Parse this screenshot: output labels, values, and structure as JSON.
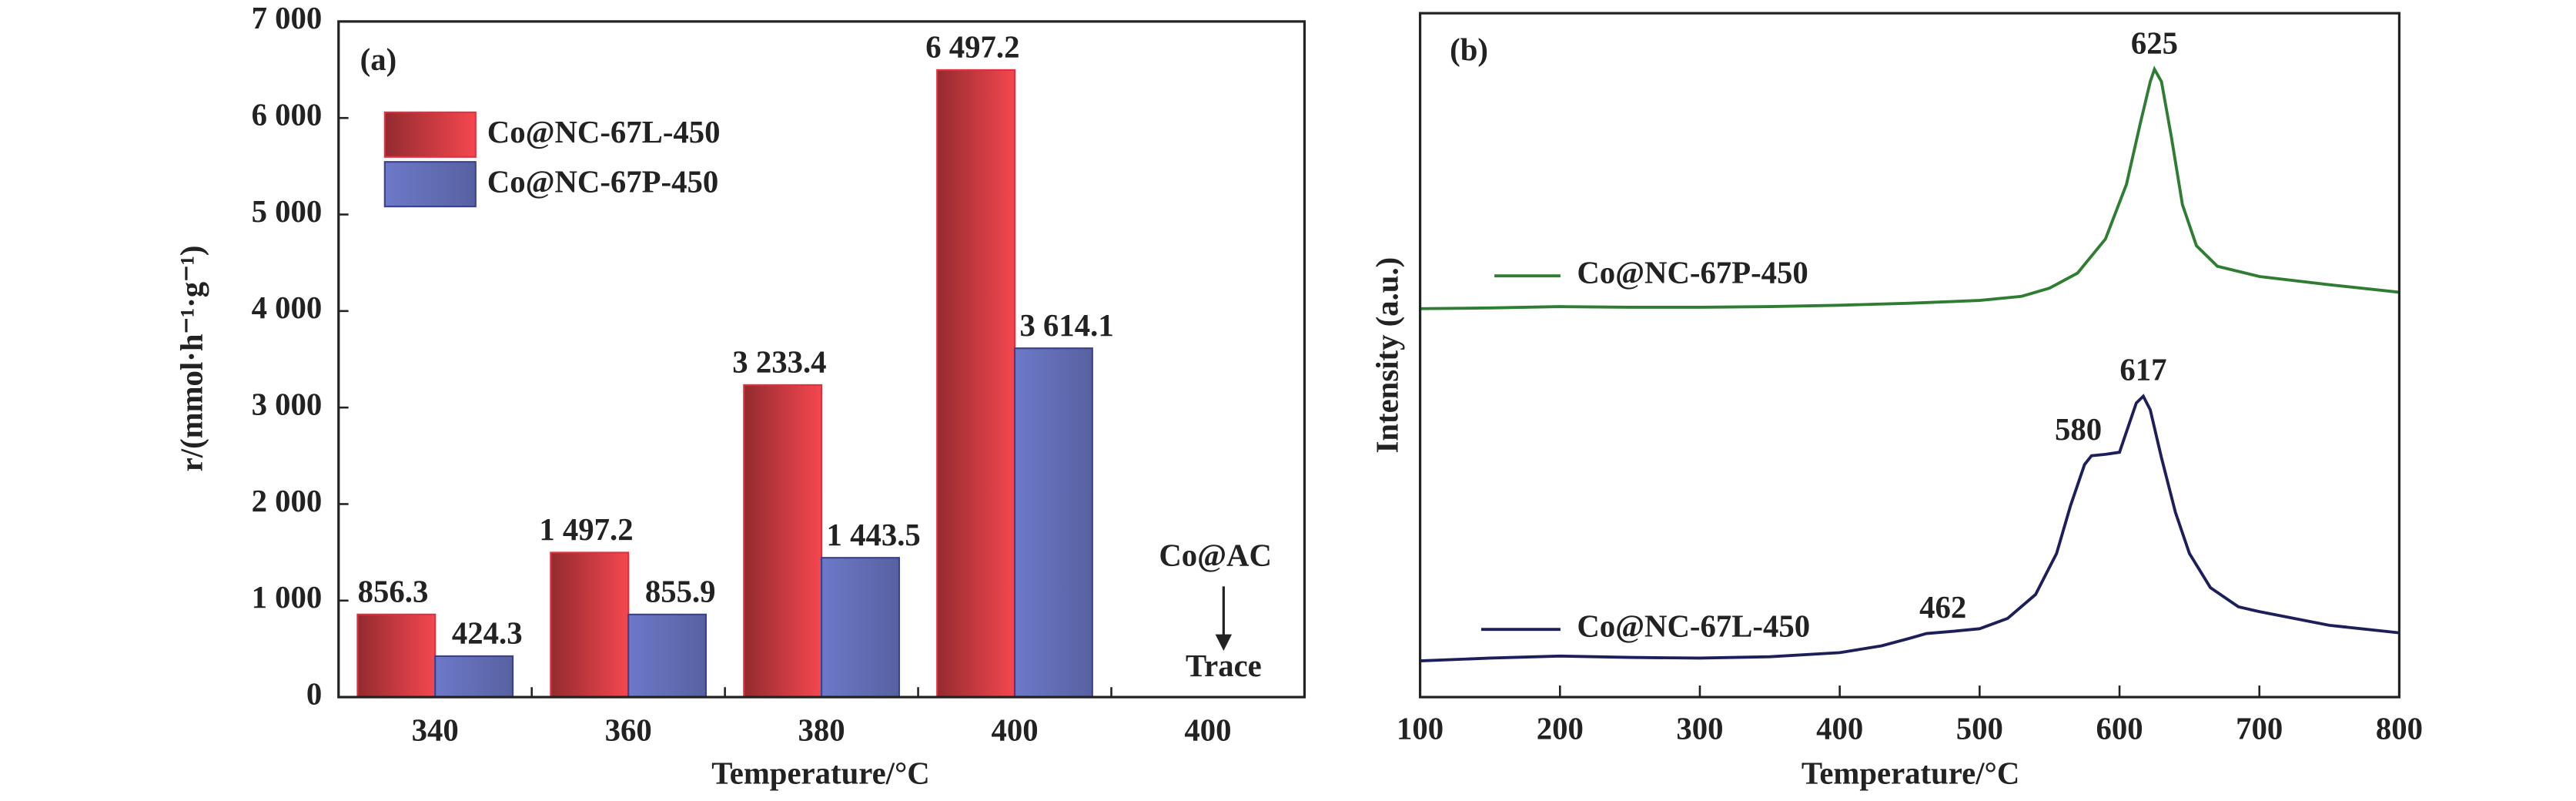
{
  "chart_data": [
    {
      "type": "bar",
      "panel": "(a)",
      "xlabel": "Temperature/°C",
      "ylabel": "r/(mmol·h⁻¹·g⁻¹)",
      "categories": [
        "340",
        "360",
        "380",
        "400",
        "400"
      ],
      "series": [
        {
          "name": "Co@NC-67L-450",
          "color": "#f5474f",
          "values": [
            856.3,
            1497.2,
            3233.4,
            6497.2,
            null
          ],
          "value_labels": [
            "856.3",
            "1 497.2",
            "3 233.4",
            "6 497.2",
            null
          ]
        },
        {
          "name": "Co@NC-67P-450",
          "color": "#6d79c9",
          "values": [
            424.3,
            855.9,
            1443.5,
            3614.1,
            null
          ],
          "value_labels": [
            "424.3",
            "855.9",
            "1 443.5",
            "3 614.1",
            null
          ]
        }
      ],
      "annotations": [
        "Co@AC",
        "Trace"
      ],
      "ylim": [
        0,
        7000
      ],
      "yticks": [
        0,
        {
          "value": 1000,
          "label": "1 000"
        },
        {
          "value": 2000,
          "label": "2 000"
        },
        {
          "value": 3000,
          "label": "3 000"
        },
        {
          "value": 4000,
          "label": "4 000"
        },
        {
          "value": 5000,
          "label": "5 000"
        },
        {
          "value": 6000,
          "label": "6 000"
        },
        {
          "value": 7000,
          "label": "7 000"
        }
      ],
      "legend": "upper left"
    },
    {
      "type": "line",
      "panel": "(b)",
      "xlabel": "Temperature/°C",
      "ylabel": "Intensity (a.u.)",
      "series": [
        {
          "name": "Co@NC-67P-450",
          "color": "#2e7d32",
          "x": [
            100,
            150,
            200,
            250,
            300,
            350,
            400,
            450,
            500,
            530,
            550,
            570,
            590,
            605,
            615,
            622,
            625,
            630,
            637,
            645,
            655,
            670,
            700,
            750,
            800
          ],
          "values": [
            56.8,
            56.9,
            57.1,
            57.0,
            57.0,
            57.1,
            57.3,
            57.6,
            58.0,
            58.6,
            59.8,
            62,
            67,
            75,
            84,
            90,
            91.8,
            90,
            82,
            72,
            66,
            63,
            61.5,
            60.3,
            59.2
          ]
        },
        {
          "name": "Co@NC-67L-450",
          "color": "#1c1f5a",
          "x": [
            100,
            150,
            200,
            250,
            300,
            350,
            400,
            430,
            450,
            462,
            480,
            500,
            520,
            540,
            555,
            565,
            575,
            580,
            590,
            600,
            607,
            612,
            617,
            622,
            630,
            640,
            650,
            665,
            685,
            700,
            750,
            800
          ],
          "values": [
            5.3,
            5.7,
            6.0,
            5.8,
            5.7,
            5.9,
            6.5,
            7.5,
            8.6,
            9.3,
            9.6,
            10.0,
            11.5,
            15,
            21,
            28,
            34,
            35.3,
            35.5,
            35.8,
            40,
            43,
            44,
            42,
            35,
            27,
            21,
            16,
            13.2,
            12.5,
            10.5,
            9.4
          ]
        }
      ],
      "annotations": [
        {
          "text": "625",
          "x": 625,
          "y": 91.8
        },
        {
          "text": "617",
          "x": 617,
          "y": 44
        },
        {
          "text": "580",
          "x": 580,
          "y": 35.3
        },
        {
          "text": "462",
          "x": 462,
          "y": 9.3
        }
      ],
      "xlim": [
        100,
        800
      ],
      "xticks": [
        100,
        200,
        300,
        400,
        500,
        600,
        700,
        800
      ],
      "ylim": [
        0,
        100
      ]
    }
  ]
}
